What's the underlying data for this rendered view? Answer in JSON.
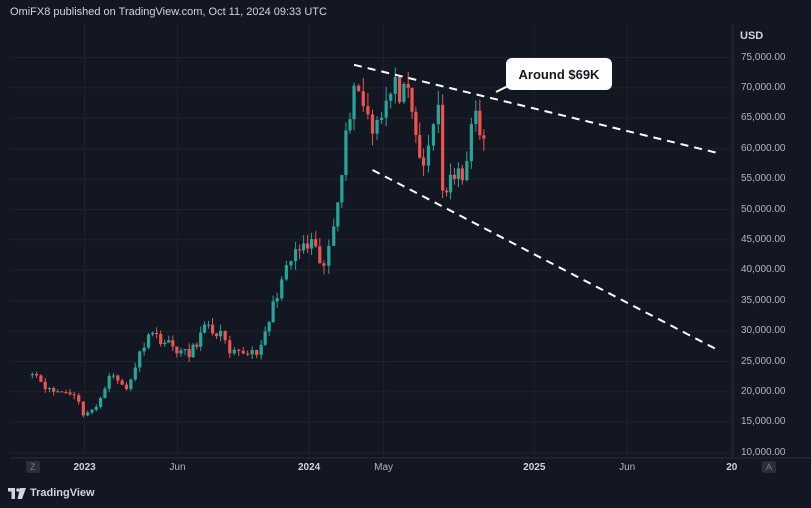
{
  "header": {
    "text": "OmiFX8 published on TradingView.com, Oct 11, 2024 09:33 UTC"
  },
  "axis": {
    "unit": "USD",
    "y_labels": [
      "75,000.00",
      "70,000.00",
      "65,000.00",
      "60,000.00",
      "55,000.00",
      "50,000.00",
      "45,000.00",
      "40,000.00",
      "35,000.00",
      "30,000.00",
      "25,000.00",
      "20,000.00",
      "15,000.00",
      "10,000.00"
    ],
    "x_labels": [
      "2023",
      "Jun",
      "2024",
      "May",
      "2025",
      "Jun",
      "20"
    ]
  },
  "controls": {
    "left": "Z",
    "right": "A"
  },
  "annotation": {
    "text": "Around $69K"
  },
  "brand": {
    "name": "TradingView"
  },
  "colors": {
    "background": "#131722",
    "up": "#26a69a",
    "down": "#ef5350",
    "grid": "#1e222d",
    "trendline": "#ffffff"
  },
  "chart_data": {
    "type": "candlestick",
    "title": "",
    "ylabel": "USD",
    "ylim": [
      10000,
      77000
    ],
    "x_range": [
      "2022-10-01",
      "2025-11-20"
    ],
    "trendlines": [
      {
        "points": [
          [
            "2024-03-14",
            73800
          ],
          [
            "2025-10-30",
            59200
          ]
        ],
        "style": "dashed"
      },
      {
        "points": [
          [
            "2024-04-13",
            56500
          ],
          [
            "2025-10-30",
            26700
          ]
        ],
        "style": "dashed"
      }
    ],
    "segments": [
      {
        "from": "2022-10-01",
        "to": "2022-11-05",
        "start": 24500,
        "end": 20200
      },
      {
        "from": "2022-11-05",
        "to": "2022-12-15",
        "start": 20200,
        "end": 19800
      },
      {
        "from": "2022-12-15",
        "to": "2022-12-30",
        "start": 19800,
        "end": 16500
      },
      {
        "from": "2022-12-30",
        "to": "2023-01-20",
        "start": 16500,
        "end": 17200
      },
      {
        "from": "2023-01-20",
        "to": "2023-02-10",
        "start": 17200,
        "end": 23000
      },
      {
        "from": "2023-02-10",
        "to": "2023-03-10",
        "start": 23000,
        "end": 20500
      },
      {
        "from": "2023-03-10",
        "to": "2023-04-15",
        "start": 20500,
        "end": 30000
      },
      {
        "from": "2023-04-15",
        "to": "2023-05-31",
        "start": 30000,
        "end": 27000
      },
      {
        "from": "2023-05-31",
        "to": "2023-06-20",
        "start": 27000,
        "end": 26000
      },
      {
        "from": "2023-06-20",
        "to": "2023-07-15",
        "start": 26000,
        "end": 30500
      },
      {
        "from": "2023-07-15",
        "to": "2023-08-10",
        "start": 30500,
        "end": 29500
      },
      {
        "from": "2023-08-10",
        "to": "2023-08-25",
        "start": 29500,
        "end": 26000
      },
      {
        "from": "2023-08-25",
        "to": "2023-10-15",
        "start": 26000,
        "end": 27000
      },
      {
        "from": "2023-10-15",
        "to": "2023-11-10",
        "start": 27000,
        "end": 36500
      },
      {
        "from": "2023-11-10",
        "to": "2023-12-10",
        "start": 36500,
        "end": 43000
      },
      {
        "from": "2023-12-10",
        "to": "2024-01-05",
        "start": 43000,
        "end": 44000
      },
      {
        "from": "2024-01-05",
        "to": "2024-01-25",
        "start": 44000,
        "end": 40000
      },
      {
        "from": "2024-01-25",
        "to": "2024-02-10",
        "start": 40000,
        "end": 48000
      },
      {
        "from": "2024-02-10",
        "to": "2024-03-14",
        "start": 48000,
        "end": 71000
      },
      {
        "from": "2024-03-14",
        "to": "2024-04-13",
        "start": 71000,
        "end": 64000
      },
      {
        "from": "2024-04-13",
        "to": "2024-05-20",
        "start": 64000,
        "end": 70000
      },
      {
        "from": "2024-05-20",
        "to": "2024-06-10",
        "start": 70000,
        "end": 68000
      },
      {
        "from": "2024-06-10",
        "to": "2024-07-05",
        "start": 68000,
        "end": 56000
      },
      {
        "from": "2024-07-05",
        "to": "2024-07-29",
        "start": 56000,
        "end": 68000
      },
      {
        "from": "2024-07-29",
        "to": "2024-08-05",
        "start": 68000,
        "end": 53000
      },
      {
        "from": "2024-08-05",
        "to": "2024-09-06",
        "start": 53000,
        "end": 56000
      },
      {
        "from": "2024-09-06",
        "to": "2024-09-28",
        "start": 56000,
        "end": 65500
      },
      {
        "from": "2024-09-28",
        "to": "2024-10-11",
        "start": 65500,
        "end": 60500
      }
    ]
  }
}
